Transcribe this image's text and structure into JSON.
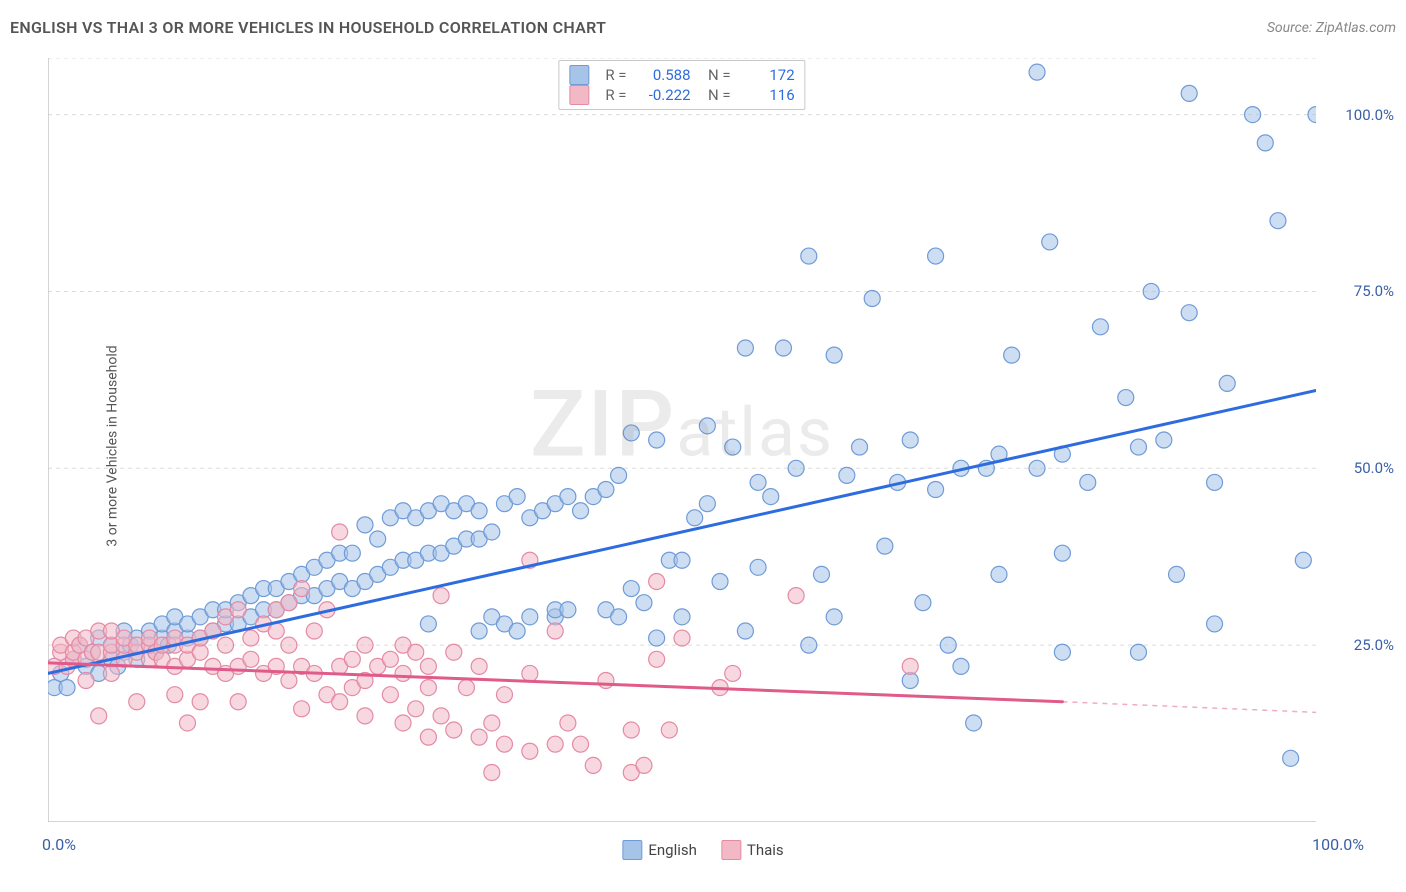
{
  "title": "ENGLISH VS THAI 3 OR MORE VEHICLES IN HOUSEHOLD CORRELATION CHART",
  "source": "Source: ZipAtlas.com",
  "ylabel": "3 or more Vehicles in Household",
  "watermark": "ZIPatlas",
  "chart": {
    "type": "scatter-with-regression",
    "xlim": [
      0,
      100
    ],
    "ylim": [
      0,
      108
    ],
    "background_color": "#ffffff",
    "grid_color": "#dcdcdc",
    "axis_color": "#c5c5c5",
    "xticks": [
      0,
      10,
      20,
      30,
      40,
      50,
      60,
      70,
      80,
      90,
      100
    ],
    "yticks": [
      25,
      50,
      75,
      100
    ],
    "ytick_labels": [
      "25.0%",
      "50.0%",
      "75.0%",
      "100.0%"
    ],
    "xtick_labels": {
      "0": "0.0%",
      "100": "100.0%"
    },
    "marker_radius": 8,
    "marker_opacity": 0.55,
    "line_width": 3,
    "series": [
      {
        "name": "English",
        "color_fill": "#a6c3e8",
        "color_stroke": "#6f9bd8",
        "line_color": "#2d6cdf",
        "R": "0.588",
        "N": "172",
        "regression": {
          "x1": 0,
          "y1": 21,
          "x2": 100,
          "y2": 61
        },
        "regression_dash_from": null,
        "points": [
          [
            0.5,
            19
          ],
          [
            1,
            21
          ],
          [
            1.5,
            19
          ],
          [
            2,
            23
          ],
          [
            2.5,
            25
          ],
          [
            3,
            22
          ],
          [
            3.5,
            24
          ],
          [
            4,
            21
          ],
          [
            4,
            26
          ],
          [
            5,
            23
          ],
          [
            5,
            25
          ],
          [
            5.5,
            22
          ],
          [
            6,
            24
          ],
          [
            6,
            27
          ],
          [
            6.5,
            25
          ],
          [
            7,
            23
          ],
          [
            7,
            26
          ],
          [
            8,
            25
          ],
          [
            8,
            27
          ],
          [
            8.5,
            24
          ],
          [
            9,
            26
          ],
          [
            9,
            28
          ],
          [
            9.5,
            25
          ],
          [
            10,
            27
          ],
          [
            10,
            29
          ],
          [
            11,
            26
          ],
          [
            11,
            28
          ],
          [
            12,
            26
          ],
          [
            12,
            29
          ],
          [
            13,
            27
          ],
          [
            13,
            30
          ],
          [
            14,
            28
          ],
          [
            14,
            30
          ],
          [
            15,
            28
          ],
          [
            15,
            31
          ],
          [
            16,
            29
          ],
          [
            16,
            32
          ],
          [
            17,
            30
          ],
          [
            17,
            33
          ],
          [
            18,
            30
          ],
          [
            18,
            33
          ],
          [
            19,
            31
          ],
          [
            19,
            34
          ],
          [
            20,
            32
          ],
          [
            20,
            35
          ],
          [
            21,
            32
          ],
          [
            21,
            36
          ],
          [
            22,
            33
          ],
          [
            22,
            37
          ],
          [
            23,
            34
          ],
          [
            23,
            38
          ],
          [
            24,
            33
          ],
          [
            24,
            38
          ],
          [
            25,
            34
          ],
          [
            25,
            42
          ],
          [
            26,
            35
          ],
          [
            26,
            40
          ],
          [
            27,
            36
          ],
          [
            27,
            43
          ],
          [
            28,
            37
          ],
          [
            28,
            44
          ],
          [
            29,
            37
          ],
          [
            29,
            43
          ],
          [
            30,
            38
          ],
          [
            30,
            44
          ],
          [
            30,
            28
          ],
          [
            31,
            38
          ],
          [
            31,
            45
          ],
          [
            32,
            39
          ],
          [
            32,
            44
          ],
          [
            33,
            40
          ],
          [
            33,
            45
          ],
          [
            34,
            27
          ],
          [
            34,
            40
          ],
          [
            34,
            44
          ],
          [
            35,
            29
          ],
          [
            35,
            41
          ],
          [
            36,
            28
          ],
          [
            36,
            45
          ],
          [
            37,
            27
          ],
          [
            37,
            46
          ],
          [
            38,
            43
          ],
          [
            38,
            29
          ],
          [
            39,
            44
          ],
          [
            40,
            29
          ],
          [
            40,
            30
          ],
          [
            40,
            45
          ],
          [
            41,
            30
          ],
          [
            41,
            46
          ],
          [
            42,
            44
          ],
          [
            43,
            46
          ],
          [
            44,
            47
          ],
          [
            44,
            30
          ],
          [
            45,
            29
          ],
          [
            45,
            49
          ],
          [
            46,
            33
          ],
          [
            46,
            55
          ],
          [
            47,
            31
          ],
          [
            48,
            26
          ],
          [
            48,
            54
          ],
          [
            49,
            37
          ],
          [
            50,
            37
          ],
          [
            50,
            29
          ],
          [
            51,
            43
          ],
          [
            52,
            45
          ],
          [
            52,
            56
          ],
          [
            53,
            34
          ],
          [
            54,
            53
          ],
          [
            55,
            27
          ],
          [
            55,
            67
          ],
          [
            56,
            36
          ],
          [
            56,
            48
          ],
          [
            57,
            46
          ],
          [
            58,
            67
          ],
          [
            59,
            50
          ],
          [
            60,
            25
          ],
          [
            60,
            80
          ],
          [
            61,
            35
          ],
          [
            62,
            29
          ],
          [
            62,
            66
          ],
          [
            63,
            49
          ],
          [
            64,
            53
          ],
          [
            65,
            74
          ],
          [
            66,
            39
          ],
          [
            67,
            48
          ],
          [
            68,
            20
          ],
          [
            68,
            54
          ],
          [
            69,
            31
          ],
          [
            70,
            47
          ],
          [
            70,
            80
          ],
          [
            71,
            25
          ],
          [
            72,
            22
          ],
          [
            72,
            50
          ],
          [
            73,
            14
          ],
          [
            74,
            50
          ],
          [
            75,
            35
          ],
          [
            75,
            52
          ],
          [
            76,
            66
          ],
          [
            78,
            50
          ],
          [
            78,
            106
          ],
          [
            79,
            82
          ],
          [
            80,
            24
          ],
          [
            80,
            38
          ],
          [
            80,
            52
          ],
          [
            82,
            48
          ],
          [
            83,
            70
          ],
          [
            85,
            60
          ],
          [
            86,
            24
          ],
          [
            86,
            53
          ],
          [
            87,
            75
          ],
          [
            88,
            54
          ],
          [
            89,
            35
          ],
          [
            90,
            72
          ],
          [
            90,
            103
          ],
          [
            92,
            28
          ],
          [
            92,
            48
          ],
          [
            93,
            62
          ],
          [
            95,
            100
          ],
          [
            96,
            96
          ],
          [
            97,
            85
          ],
          [
            98,
            9
          ],
          [
            99,
            37
          ],
          [
            100,
            100
          ]
        ]
      },
      {
        "name": "Thais",
        "color_fill": "#f3b8c6",
        "color_stroke": "#e48aa4",
        "line_color": "#e05a8a",
        "R": "-0.222",
        "N": "116",
        "regression": {
          "x1": 0,
          "y1": 22.5,
          "x2": 80,
          "y2": 17
        },
        "regression_dash_from": 80,
        "regression_dash": {
          "x1": 80,
          "y1": 17,
          "x2": 100,
          "y2": 15.5
        },
        "points": [
          [
            0.5,
            22
          ],
          [
            1,
            24
          ],
          [
            1,
            25
          ],
          [
            1.5,
            22
          ],
          [
            2,
            23
          ],
          [
            2,
            24
          ],
          [
            2,
            26
          ],
          [
            2.5,
            25
          ],
          [
            3,
            20
          ],
          [
            3,
            23
          ],
          [
            3,
            26
          ],
          [
            3.5,
            24
          ],
          [
            4,
            15
          ],
          [
            4,
            24
          ],
          [
            4,
            27
          ],
          [
            5,
            21
          ],
          [
            5,
            24
          ],
          [
            5,
            25
          ],
          [
            5,
            27
          ],
          [
            6,
            23
          ],
          [
            6,
            25
          ],
          [
            6,
            26
          ],
          [
            7,
            17
          ],
          [
            7,
            24
          ],
          [
            7,
            25
          ],
          [
            8,
            23
          ],
          [
            8,
            25
          ],
          [
            8,
            26
          ],
          [
            8.5,
            24
          ],
          [
            9,
            23
          ],
          [
            9,
            25
          ],
          [
            10,
            18
          ],
          [
            10,
            22
          ],
          [
            10,
            25
          ],
          [
            10,
            26
          ],
          [
            11,
            14
          ],
          [
            11,
            23
          ],
          [
            11,
            25
          ],
          [
            12,
            17
          ],
          [
            12,
            24
          ],
          [
            12,
            26
          ],
          [
            13,
            22
          ],
          [
            13,
            27
          ],
          [
            14,
            21
          ],
          [
            14,
            25
          ],
          [
            14,
            29
          ],
          [
            15,
            17
          ],
          [
            15,
            22
          ],
          [
            15,
            30
          ],
          [
            16,
            23
          ],
          [
            16,
            26
          ],
          [
            17,
            21
          ],
          [
            17,
            28
          ],
          [
            18,
            22
          ],
          [
            18,
            27
          ],
          [
            18,
            30
          ],
          [
            19,
            20
          ],
          [
            19,
            25
          ],
          [
            19,
            31
          ],
          [
            20,
            16
          ],
          [
            20,
            22
          ],
          [
            20,
            33
          ],
          [
            21,
            21
          ],
          [
            21,
            27
          ],
          [
            22,
            18
          ],
          [
            22,
            30
          ],
          [
            23,
            17
          ],
          [
            23,
            22
          ],
          [
            23,
            41
          ],
          [
            24,
            19
          ],
          [
            24,
            23
          ],
          [
            25,
            15
          ],
          [
            25,
            20
          ],
          [
            25,
            25
          ],
          [
            26,
            22
          ],
          [
            27,
            18
          ],
          [
            27,
            23
          ],
          [
            28,
            14
          ],
          [
            28,
            21
          ],
          [
            28,
            25
          ],
          [
            29,
            16
          ],
          [
            29,
            24
          ],
          [
            30,
            12
          ],
          [
            30,
            19
          ],
          [
            30,
            22
          ],
          [
            31,
            15
          ],
          [
            31,
            32
          ],
          [
            32,
            13
          ],
          [
            32,
            24
          ],
          [
            33,
            19
          ],
          [
            34,
            12
          ],
          [
            34,
            22
          ],
          [
            35,
            7
          ],
          [
            35,
            14
          ],
          [
            36,
            11
          ],
          [
            36,
            18
          ],
          [
            38,
            10
          ],
          [
            38,
            21
          ],
          [
            38,
            37
          ],
          [
            40,
            11
          ],
          [
            40,
            27
          ],
          [
            41,
            14
          ],
          [
            42,
            11
          ],
          [
            43,
            8
          ],
          [
            44,
            20
          ],
          [
            46,
            7
          ],
          [
            46,
            13
          ],
          [
            47,
            8
          ],
          [
            48,
            23
          ],
          [
            48,
            34
          ],
          [
            49,
            13
          ],
          [
            50,
            26
          ],
          [
            53,
            19
          ],
          [
            54,
            21
          ],
          [
            59,
            32
          ],
          [
            68,
            22
          ]
        ]
      }
    ],
    "bottom_legend": [
      {
        "label": "English",
        "fill": "#a6c3e8",
        "border": "#6f9bd8"
      },
      {
        "label": "Thais",
        "fill": "#f3b8c6",
        "border": "#e48aa4"
      }
    ]
  }
}
